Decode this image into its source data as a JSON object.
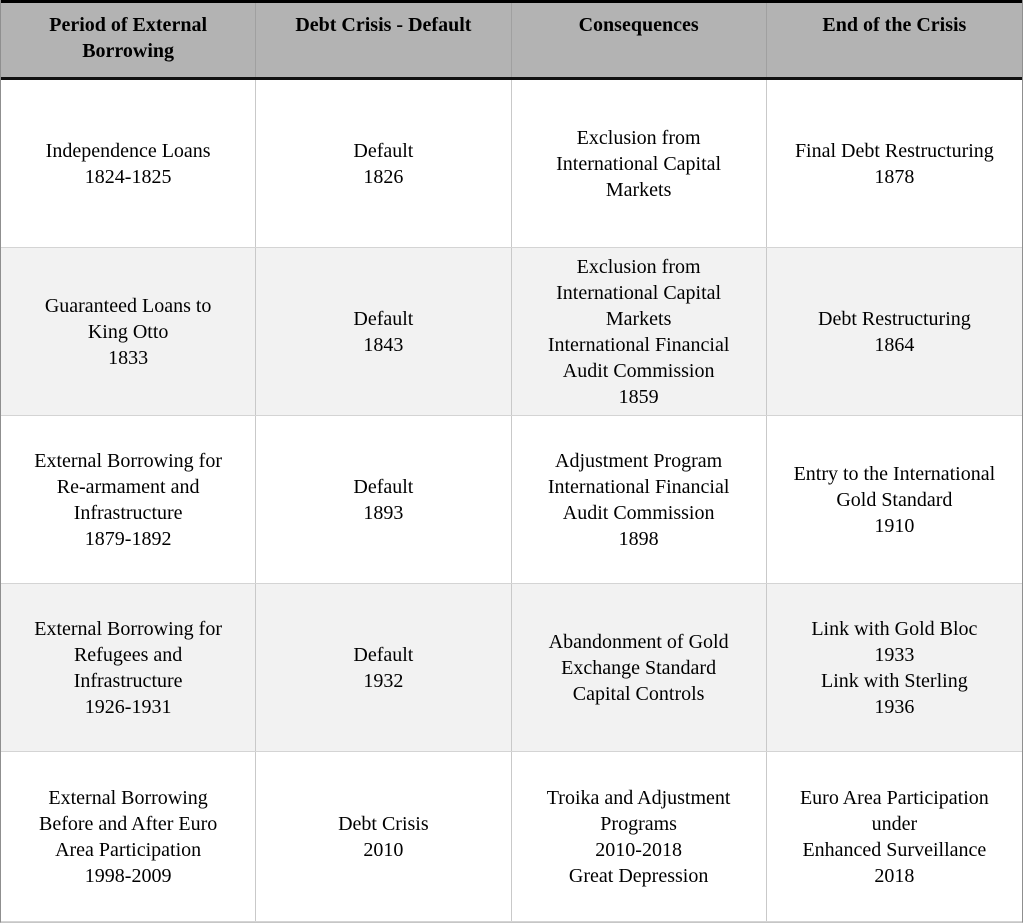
{
  "colors": {
    "header_background": "#b3b3b3",
    "alternate_row_background": "#f2f2f2",
    "header_rule": "#000000",
    "grid_line": "#c9c9c9",
    "text": "#000000"
  },
  "table": {
    "headers": [
      "Period of External\nBorrowing",
      "Debt Crisis - Default",
      "Consequences",
      "End of the Crisis"
    ],
    "rows": [
      {
        "cells": [
          "Independence Loans\n1824-1825",
          "Default\n1826",
          "Exclusion from\nInternational Capital\nMarkets",
          "Final Debt Restructuring\n1878"
        ]
      },
      {
        "cells": [
          "Guaranteed Loans to\nKing Otto\n1833",
          "Default\n1843",
          "Exclusion from\nInternational Capital\nMarkets\nInternational Financial\nAudit Commission\n1859",
          "Debt Restructuring\n1864"
        ]
      },
      {
        "cells": [
          "External Borrowing for\nRe-armament and\nInfrastructure\n1879-1892",
          "Default\n1893",
          "Adjustment Program\nInternational Financial\nAudit Commission\n1898",
          "Entry to the International\nGold Standard\n1910"
        ]
      },
      {
        "cells": [
          "External Borrowing for\nRefugees and\nInfrastructure\n1926-1931",
          "Default\n1932",
          "Abandonment of Gold\nExchange Standard\nCapital Controls",
          "Link with Gold Bloc\n1933\nLink with Sterling\n1936"
        ]
      },
      {
        "cells": [
          "External Borrowing\nBefore and After Euro\nArea Participation\n1998-2009",
          "Debt Crisis\n2010",
          "Troika and Adjustment\nPrograms\n2010-2018\nGreat Depression",
          "Euro Area Participation\nunder\nEnhanced Surveillance\n2018"
        ]
      }
    ]
  }
}
